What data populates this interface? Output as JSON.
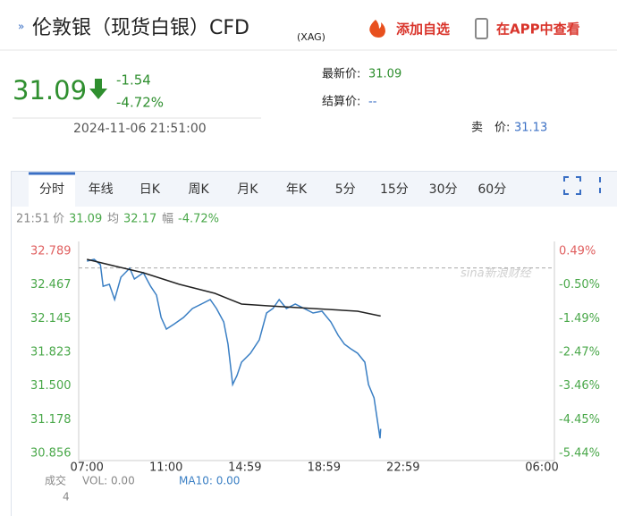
{
  "header": {
    "title": "伦敦银（现货白银）CFD",
    "code": "(XAG)",
    "add_watch": "添加自选",
    "open_app": "在APP中查看"
  },
  "quote": {
    "price": "31.09",
    "change": "-1.54",
    "change_pct": "-4.72%",
    "datetime": "2024-11-06 21:51:00",
    "latest_label": "最新价:",
    "latest": "31.09",
    "settle_label": "结算价:",
    "settle": "--",
    "ask_label": "卖　价:",
    "ask": "31.13"
  },
  "tabs": [
    "分时",
    "年线",
    "日K",
    "周K",
    "月K",
    "年K",
    "5分",
    "15分",
    "30分",
    "60分"
  ],
  "info": {
    "time": "21:51",
    "price": "31.09",
    "avg": "32.17",
    "change_label": "幅",
    "change": "-4.72%"
  },
  "footer": {
    "volume_label": "成交",
    "volume_unit": "4",
    "vol": "VOL: 0.00",
    "ma10": "MA10: 0.00"
  },
  "chart_data": {
    "type": "line",
    "watermark": "sina新浪财经",
    "previous_close": 32.63,
    "xlim": [
      "06:35",
      "06:00"
    ],
    "xticks": [
      "07:00",
      "11:00",
      "14:59",
      "18:59",
      "22:59",
      "06:00"
    ],
    "ylim": [
      30.856,
      32.789
    ],
    "yticks": [
      32.789,
      32.467,
      32.145,
      31.823,
      {
        "value": 31.5,
        "label": "31.500"
      },
      31.178,
      30.856
    ],
    "y2lim": [
      -5.44,
      0.49
    ],
    "y2ticks": [
      {
        "value": 0.49,
        "label": "0.49%"
      },
      {
        "value": -0.5,
        "label": "-0.50%"
      },
      {
        "value": -1.49,
        "label": "-1.49%"
      },
      {
        "value": -2.47,
        "label": "-2.47%"
      },
      {
        "value": -3.46,
        "label": "-3.46%"
      },
      {
        "value": -4.45,
        "label": "-4.45%"
      },
      {
        "value": -5.44,
        "label": "-5.44%"
      }
    ],
    "up_color": "#e06060",
    "down_color": "#4aa84a",
    "series": [
      {
        "name": "价",
        "color": "#3a7fc4",
        "x": [
          "07:00",
          "07:22",
          "07:41",
          "07:49",
          "08:08",
          "08:24",
          "08:43",
          "09:10",
          "09:24",
          "09:51",
          "10:13",
          "10:31",
          "10:45",
          "11:01",
          "11:26",
          "11:53",
          "12:20",
          "12:47",
          "13:14",
          "13:33",
          "13:55",
          "14:08",
          "14:22",
          "14:35",
          "14:49",
          "15:16",
          "15:43",
          "16:05",
          "16:24",
          "16:43",
          "17:05",
          "17:32",
          "17:59",
          "18:26",
          "18:53",
          "19:20",
          "19:42",
          "20:01",
          "20:20",
          "20:41",
          "21:03",
          "21:14",
          "21:31",
          "21:41",
          "21:49",
          "21:51"
        ],
        "values": [
          32.695,
          32.712,
          32.661,
          32.455,
          32.473,
          32.327,
          32.541,
          32.627,
          32.524,
          32.584,
          32.455,
          32.37,
          32.156,
          32.045,
          32.096,
          32.156,
          32.242,
          32.284,
          32.327,
          32.242,
          32.113,
          31.9,
          31.515,
          31.6,
          31.728,
          31.814,
          31.942,
          32.199,
          32.242,
          32.327,
          32.242,
          32.284,
          32.242,
          32.199,
          32.216,
          32.113,
          31.985,
          31.9,
          31.857,
          31.814,
          31.728,
          31.515,
          31.387,
          31.173,
          31.0,
          31.09
        ]
      },
      {
        "name": "均",
        "color": "#222222",
        "x": [
          "07:00",
          "08:30",
          "09:51",
          "11:40",
          "13:28",
          "14:49",
          "16:10",
          "18:26",
          "20:41",
          "21:51"
        ],
        "values": [
          32.712,
          32.644,
          32.584,
          32.473,
          32.387,
          32.284,
          32.267,
          32.242,
          32.216,
          32.17
        ]
      }
    ]
  }
}
